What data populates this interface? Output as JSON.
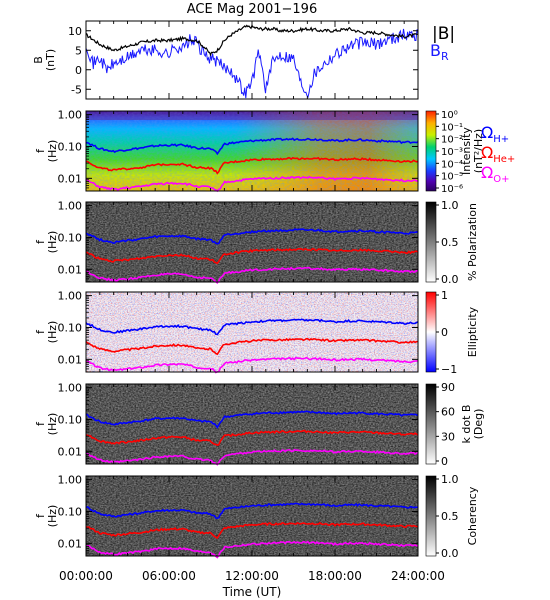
{
  "title": "ACE Mag 2001−196",
  "x_axis": {
    "label": "Time (UT)",
    "ticks": [
      "00:00:00",
      "06:00:00",
      "12:00:00",
      "18:00:00",
      "24:00:00"
    ],
    "range_hours": [
      0,
      24
    ]
  },
  "colors": {
    "B_total": "#000000",
    "B_R": "#1a1aff",
    "omega_H": "#0000ff",
    "omega_He": "#ff0000",
    "omega_O": "#ff00ff"
  },
  "legend": {
    "B_total": "|B|",
    "B_R_main": "B",
    "B_R_sub": "R",
    "omega_symbol": "Ω",
    "omega_H_sub": "H+",
    "omega_He_sub": "He+",
    "omega_O_sub": "O+"
  },
  "panels": [
    {
      "id": "field",
      "ylabel_line1": "B",
      "ylabel_line2": "(nT)",
      "yticks": [
        "10",
        "5",
        "0",
        "-5"
      ]
    },
    {
      "id": "intensity",
      "ylabel_line1": "f",
      "ylabel_line2": "(Hz)",
      "yticks": [
        "1.00",
        "0.10",
        "0.01"
      ],
      "colorbar_label_line1": "Intensity",
      "colorbar_label_line2": "(nT²/Hz)",
      "colorbar_ticks": [
        "10⁰",
        "10⁻¹",
        "10⁻²",
        "10⁻³",
        "10⁻⁴",
        "10⁻⁵",
        "10⁻⁶"
      ]
    },
    {
      "id": "polarization",
      "ylabel_line1": "f",
      "ylabel_line2": "(Hz)",
      "yticks": [
        "1.00",
        "0.10",
        "0.01"
      ],
      "colorbar_label_line1": "% Polarization",
      "colorbar_label_line2": "",
      "colorbar_ticks": [
        "1.0",
        "0.5",
        "0.0"
      ]
    },
    {
      "id": "ellipticity",
      "ylabel_line1": "f",
      "ylabel_line2": "(Hz)",
      "yticks": [
        "1.00",
        "0.10",
        "0.01"
      ],
      "colorbar_label_line1": "Ellipticity",
      "colorbar_label_line2": "",
      "colorbar_ticks": [
        "1",
        "0",
        "−1"
      ]
    },
    {
      "id": "kdotb",
      "ylabel_line1": "f",
      "ylabel_line2": "(Hz)",
      "yticks": [
        "1.00",
        "0.10",
        "0.01"
      ],
      "colorbar_label_line1": "k dot B",
      "colorbar_label_line2": "(Deg)",
      "colorbar_ticks": [
        "90",
        "60",
        "30",
        "0"
      ]
    },
    {
      "id": "coherency",
      "ylabel_line1": "f",
      "ylabel_line2": "(Hz)",
      "yticks": [
        "1.00",
        "0.10",
        "0.01"
      ],
      "colorbar_label_line1": "Coherency",
      "colorbar_label_line2": "",
      "colorbar_ticks": [
        "1.0",
        "0.5",
        "0.0"
      ]
    }
  ],
  "chart_data": [
    {
      "type": "line",
      "title": "ACE Mag 2001−196",
      "xlabel": "Time (UT)",
      "ylabel": "B (nT)",
      "xlim": [
        0,
        24
      ],
      "ylim": [
        -7.5,
        12.5
      ],
      "series": [
        {
          "name": "|B|",
          "x": [
            0,
            1,
            2,
            3,
            4,
            5,
            6,
            7,
            8,
            8.5,
            9,
            9.5,
            10,
            10.5,
            11,
            11.5,
            12,
            12.5,
            13,
            13.5,
            14,
            15,
            16,
            17,
            18,
            19,
            20,
            21,
            22,
            23,
            24
          ],
          "values": [
            9.0,
            6.5,
            5.0,
            6.0,
            7.0,
            7.5,
            7.5,
            8.0,
            7.5,
            6.0,
            4.0,
            5.0,
            7.5,
            9.0,
            10.0,
            11.0,
            11.0,
            10.5,
            10.5,
            10.5,
            10.0,
            10.0,
            10.5,
            10.0,
            10.0,
            10.5,
            9.5,
            9.5,
            9.0,
            8.5,
            9.0
          ]
        },
        {
          "name": "B_R",
          "x": [
            0,
            0.5,
            1,
            1.5,
            2,
            3,
            4,
            5,
            6,
            6.5,
            7,
            7.5,
            8,
            8.5,
            9,
            9.5,
            10,
            10.5,
            11,
            11.5,
            12,
            12.5,
            13,
            13.5,
            14,
            15,
            15.5,
            16,
            16.5,
            17,
            18,
            19,
            20,
            21,
            22,
            23,
            24
          ],
          "values": [
            7.0,
            1.5,
            3.0,
            0.0,
            1.5,
            3.0,
            5.0,
            5.0,
            4.0,
            6.0,
            5.5,
            7.5,
            7.0,
            4.0,
            3.0,
            2.0,
            0.5,
            0.0,
            -3.0,
            -6.0,
            -3.0,
            5.0,
            -5.0,
            2.0,
            4.0,
            3.0,
            -3.0,
            -6.0,
            -1.0,
            1.0,
            4.0,
            6.0,
            7.0,
            6.5,
            8.0,
            9.0,
            9.0
          ]
        }
      ]
    },
    {
      "type": "line",
      "title": "",
      "xlabel": "Time (UT)",
      "ylabel": "f (Hz)",
      "yscale": "log",
      "xlim": [
        0,
        24
      ],
      "ylim": [
        0.004,
        1.3
      ],
      "series": [
        {
          "name": "Ω H+",
          "x": [
            0,
            1,
            2,
            3,
            4,
            5,
            6,
            7,
            8,
            9,
            9.5,
            10,
            11,
            12,
            13,
            14,
            15,
            16,
            17,
            18,
            19,
            20,
            21,
            22,
            23,
            24
          ],
          "values": [
            0.14,
            0.085,
            0.07,
            0.08,
            0.09,
            0.105,
            0.11,
            0.11,
            0.09,
            0.085,
            0.06,
            0.12,
            0.135,
            0.15,
            0.16,
            0.165,
            0.17,
            0.17,
            0.165,
            0.15,
            0.16,
            0.16,
            0.15,
            0.145,
            0.135,
            0.14
          ]
        },
        {
          "name": "Ω He+",
          "x": [
            0,
            1,
            2,
            3,
            4,
            5,
            6,
            7,
            8,
            9,
            9.5,
            10,
            11,
            12,
            13,
            14,
            15,
            16,
            17,
            18,
            19,
            20,
            21,
            22,
            23,
            24
          ],
          "values": [
            0.035,
            0.021,
            0.018,
            0.02,
            0.022,
            0.026,
            0.028,
            0.028,
            0.022,
            0.021,
            0.015,
            0.03,
            0.034,
            0.038,
            0.04,
            0.041,
            0.042,
            0.042,
            0.041,
            0.038,
            0.04,
            0.04,
            0.038,
            0.036,
            0.034,
            0.035
          ]
        },
        {
          "name": "Ω O+",
          "x": [
            0,
            1,
            2,
            3,
            4,
            5,
            6,
            7,
            8,
            9,
            9.5,
            10,
            11,
            12,
            13,
            14,
            15,
            16,
            17,
            18,
            19,
            20,
            21,
            22,
            23,
            24
          ],
          "values": [
            0.009,
            0.0053,
            0.0045,
            0.005,
            0.0056,
            0.0066,
            0.007,
            0.007,
            0.0056,
            0.0053,
            0.0038,
            0.0075,
            0.0085,
            0.0095,
            0.01,
            0.0103,
            0.0106,
            0.0106,
            0.0103,
            0.0095,
            0.01,
            0.01,
            0.0095,
            0.009,
            0.0085,
            0.0088
          ]
        }
      ]
    }
  ]
}
